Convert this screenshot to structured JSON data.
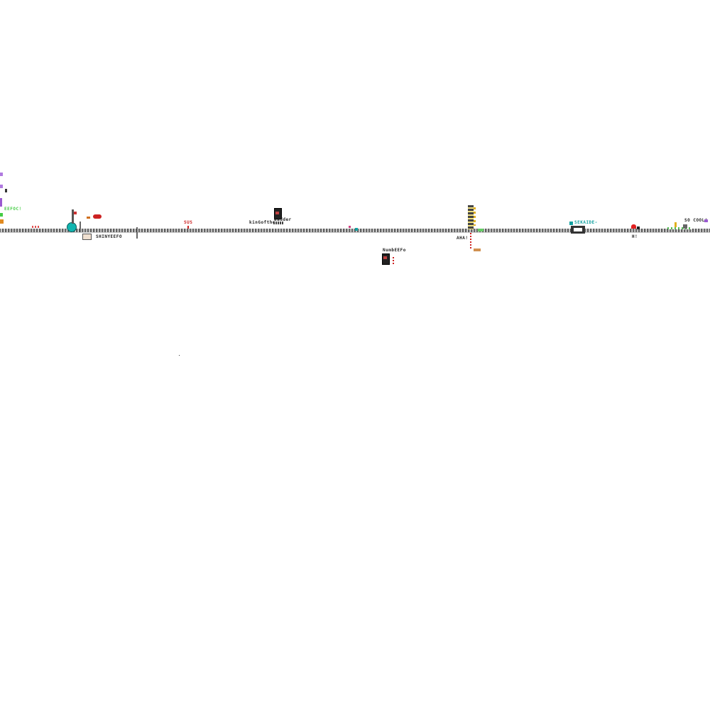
{
  "colors": {
    "background": "#ffffff",
    "rail": "#8a8a8a",
    "red": "#cc2222",
    "teal": "#11a0a0",
    "green": "#44cc44",
    "purple": "#9a5ad0",
    "orange": "#e08a20",
    "dark": "#222222"
  },
  "labels": {
    "shiny": "SHINYEEFO",
    "sus": "SUS",
    "kingofthe": "kinGofthe",
    "wadder": "wadder",
    "numbeefo": "NumbEEFo",
    "aha": "AHA!",
    "sekaide": "SEKAIDE-",
    "socool": "SO COOL!",
    "eefoc": "EEFOC!",
    "hi": "H!"
  },
  "icons": [
    "teal-blob-icon",
    "red-bug-icon",
    "heart-icon",
    "pixel-character-icon",
    "signpost-icon"
  ]
}
